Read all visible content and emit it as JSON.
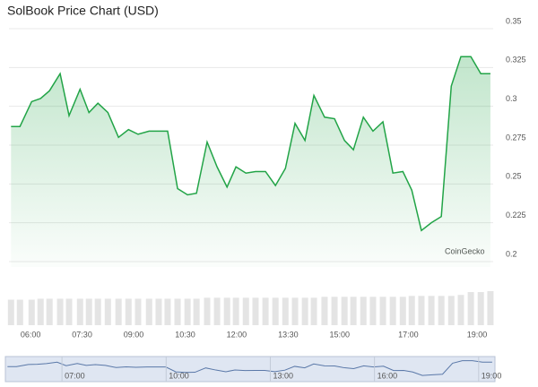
{
  "chart_data": {
    "type": "line",
    "title": "SolBook Price Chart (USD)",
    "watermark": "CoinGecko",
    "color": "#22a447",
    "grid": true,
    "x": [
      5.43,
      5.69,
      6.03,
      6.29,
      6.55,
      6.86,
      7.12,
      7.44,
      7.7,
      7.96,
      8.25,
      8.56,
      8.85,
      9.13,
      9.45,
      9.73,
      9.99,
      10.28,
      10.57,
      10.83,
      11.14,
      11.43,
      11.72,
      11.98,
      12.27,
      12.55,
      12.84,
      13.13,
      13.42,
      13.7,
      13.99,
      14.25,
      14.56,
      14.85,
      15.14,
      15.4,
      15.69,
      15.97,
      16.26,
      16.55,
      16.84,
      17.1,
      17.38,
      17.67,
      17.96,
      18.25,
      18.53,
      18.82,
      19.11,
      19.39
    ],
    "values": [
      0.287,
      0.287,
      0.303,
      0.305,
      0.31,
      0.321,
      0.294,
      0.311,
      0.296,
      0.302,
      0.296,
      0.28,
      0.285,
      0.282,
      0.284,
      0.284,
      0.284,
      0.247,
      0.243,
      0.244,
      0.277,
      0.261,
      0.248,
      0.261,
      0.257,
      0.258,
      0.258,
      0.249,
      0.26,
      0.289,
      0.278,
      0.307,
      0.293,
      0.292,
      0.278,
      0.272,
      0.293,
      0.284,
      0.29,
      0.257,
      0.258,
      0.246,
      0.22,
      0.225,
      0.229,
      0.313,
      0.332,
      0.332,
      0.321,
      0.321
    ],
    "volume": [
      27,
      27,
      27,
      28,
      28,
      28,
      28,
      28,
      28,
      28,
      28,
      28,
      28,
      28,
      28,
      28,
      28,
      28,
      28,
      28,
      29,
      29,
      29,
      29,
      29,
      29,
      29,
      29,
      29,
      29,
      29,
      29,
      30,
      30,
      30,
      30,
      30,
      30,
      30,
      30,
      30,
      31,
      31,
      31,
      31,
      31,
      32,
      35,
      35,
      36
    ],
    "xlim": [
      5.37,
      19.47
    ],
    "ylim": [
      0.2,
      0.35
    ],
    "yticks": [
      0.2,
      0.225,
      0.25,
      0.275,
      0.3,
      0.325,
      0.35
    ],
    "xticks": [
      {
        "value": 6,
        "label": "06:00"
      },
      {
        "value": 7.5,
        "label": "07:30"
      },
      {
        "value": 9,
        "label": "09:00"
      },
      {
        "value": 10.5,
        "label": "10:30"
      },
      {
        "value": 12,
        "label": "12:00"
      },
      {
        "value": 13.5,
        "label": "13:30"
      },
      {
        "value": 15,
        "label": "15:00"
      },
      {
        "value": 17,
        "label": "17:00"
      },
      {
        "value": 19,
        "label": "19:00"
      }
    ],
    "navigator_ticks": [
      {
        "value": 7,
        "label": "07:00"
      },
      {
        "value": 10,
        "label": "10:00"
      },
      {
        "value": 13,
        "label": "13:00"
      },
      {
        "value": 16,
        "label": "16:00"
      },
      {
        "value": 19,
        "label": "19:00"
      }
    ]
  }
}
